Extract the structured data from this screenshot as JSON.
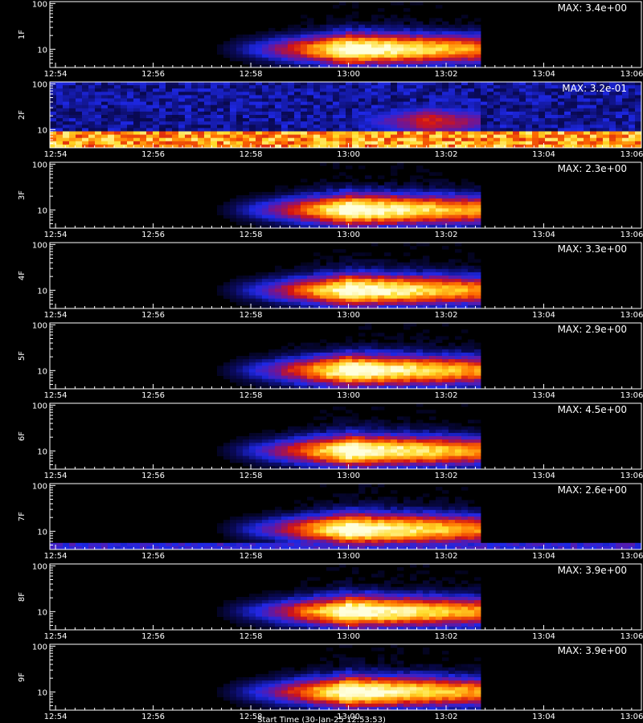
{
  "chart_data": {
    "type": "heatmap",
    "x_ticks": [
      "12:54",
      "12:56",
      "12:58",
      "13:00",
      "13:02",
      "13:04",
      "13:06"
    ],
    "y_ticks": [
      "10",
      "100"
    ],
    "y_scale": "log",
    "x_axis_label": "Start Time (30-Jan-25 12:53:53)",
    "colormap": "black-blue-red-yellow-white",
    "panels": [
      {
        "label": "1F",
        "max_label": "MAX: 3.4e+00",
        "max": 3.4,
        "burst": {
          "start": "12:57:10",
          "peak": "13:00:00",
          "end": "13:02:40",
          "freq": 10
        }
      },
      {
        "label": "2F",
        "max_label": "MAX: 3.2e-01",
        "max": 0.32,
        "burst": {
          "start": "12:59:00",
          "peak": "13:01:40",
          "end": "13:02:40",
          "freq": 15
        },
        "background_band": "low-frequency strong"
      },
      {
        "label": "3F",
        "max_label": "MAX: 2.3e+00",
        "max": 2.3,
        "burst": {
          "start": "12:57:10",
          "peak": "13:00:00",
          "end": "13:02:40",
          "freq": 10
        }
      },
      {
        "label": "4F",
        "max_label": "MAX: 3.3e+00",
        "max": 3.3,
        "burst": {
          "start": "12:57:10",
          "peak": "13:00:00",
          "end": "13:02:40",
          "freq": 10
        }
      },
      {
        "label": "5F",
        "max_label": "MAX: 2.9e+00",
        "max": 2.9,
        "burst": {
          "start": "12:57:10",
          "peak": "13:00:00",
          "end": "13:02:40",
          "freq": 10
        }
      },
      {
        "label": "6F",
        "max_label": "MAX: 4.5e+00",
        "max": 4.5,
        "burst": {
          "start": "12:57:10",
          "peak": "13:00:00",
          "end": "13:02:40",
          "freq": 10
        }
      },
      {
        "label": "7F",
        "max_label": "MAX: 2.6e+00",
        "max": 2.6,
        "burst": {
          "start": "12:57:10",
          "peak": "13:00:00",
          "end": "13:02:40",
          "freq": 11
        },
        "background_band": "low-frequency weak"
      },
      {
        "label": "8F",
        "max_label": "MAX: 3.9e+00",
        "max": 3.9,
        "burst": {
          "start": "12:57:10",
          "peak": "13:00:00",
          "end": "13:02:40",
          "freq": 10
        }
      },
      {
        "label": "9F",
        "max_label": "MAX: 3.9e+00",
        "max": 3.9,
        "burst": {
          "start": "12:57:10",
          "peak": "13:00:00",
          "end": "13:02:40",
          "freq": 10
        }
      }
    ]
  }
}
